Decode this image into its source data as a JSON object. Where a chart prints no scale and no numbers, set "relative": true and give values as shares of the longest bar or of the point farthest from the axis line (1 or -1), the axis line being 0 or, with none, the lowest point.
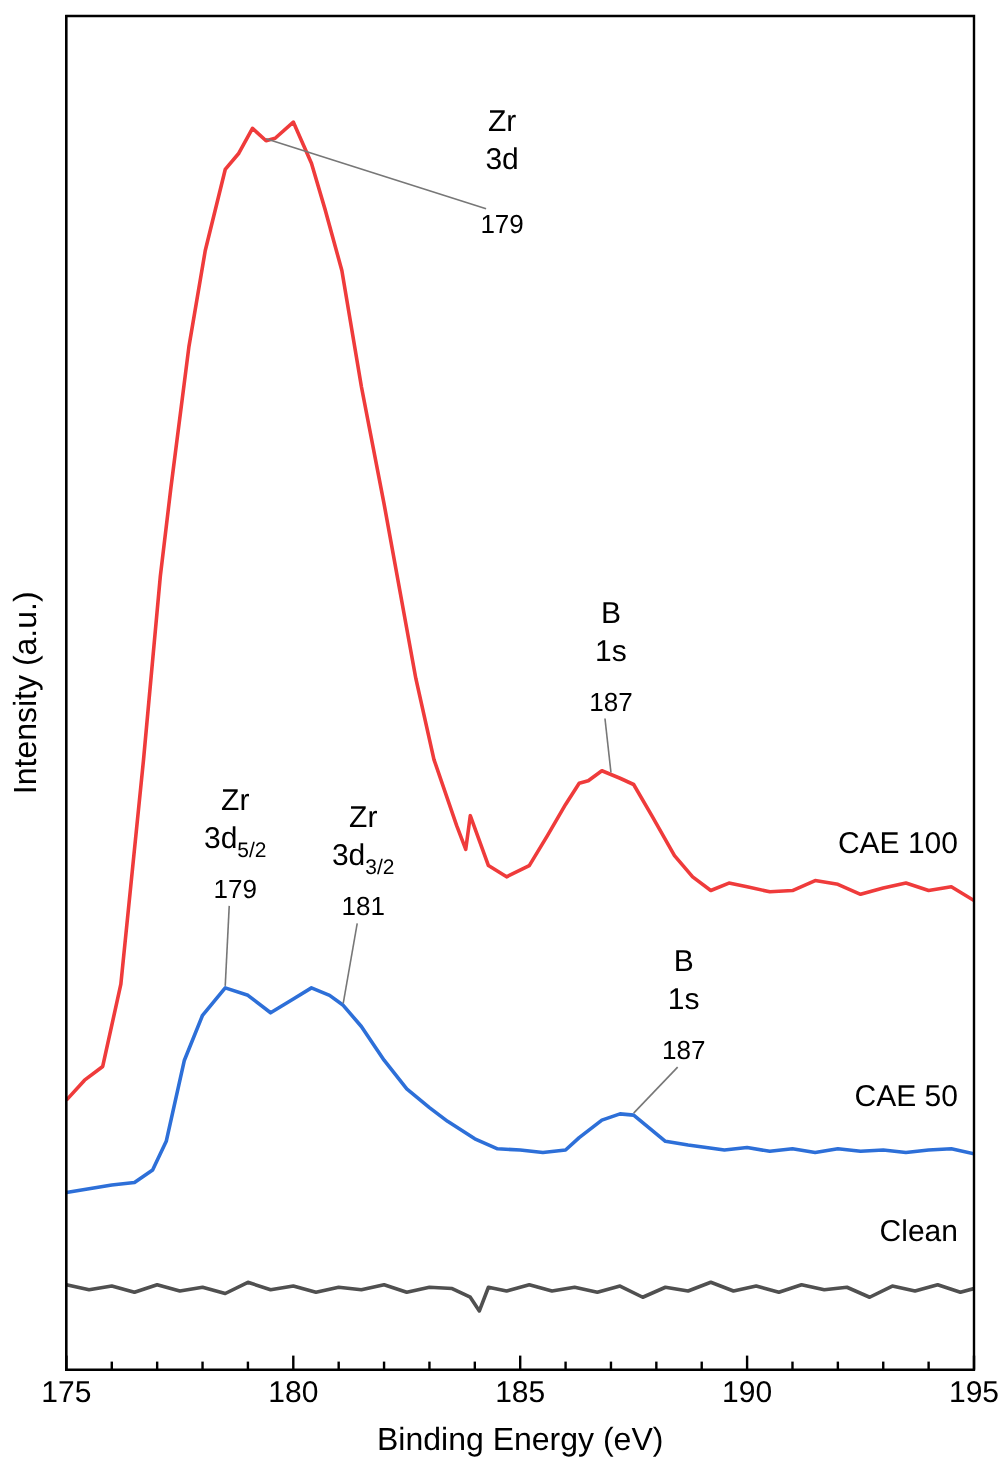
{
  "chart_data": {
    "type": "line",
    "relative": true,
    "xlabel": "Binding Energy (eV)",
    "ylabel": "Intensity (a.u.)",
    "xlim": [
      175,
      195
    ],
    "xticks": [
      175,
      {
        "value": 176,
        "label": null
      },
      {
        "value": 177,
        "label": null
      },
      {
        "value": 178,
        "label": null
      },
      {
        "value": 179,
        "label": null
      },
      180,
      {
        "value": 181,
        "label": null
      },
      {
        "value": 182,
        "label": null
      },
      {
        "value": 183,
        "label": null
      },
      {
        "value": 184,
        "label": null
      },
      185,
      {
        "value": 186,
        "label": null
      },
      {
        "value": 187,
        "label": null
      },
      {
        "value": 188,
        "label": null
      },
      {
        "value": 189,
        "label": null
      },
      190,
      {
        "value": 191,
        "label": null
      },
      {
        "value": 192,
        "label": null
      },
      {
        "value": 193,
        "label": null
      },
      {
        "value": 194,
        "label": null
      },
      195
    ],
    "grid": false,
    "legend": false,
    "marker": "none",
    "line_style": "solid",
    "series": [
      {
        "name": "CAE 100",
        "color": "#ef3b3b",
        "x": [
          175,
          175.4,
          175.8,
          176.2,
          176.7,
          177.07,
          177.3,
          177.7,
          178.06,
          178.5,
          178.8,
          179.1,
          179.4,
          179.6,
          180,
          180.4,
          180.7,
          181.07,
          181.5,
          182,
          182.7,
          183.1,
          183.6,
          183.8,
          183.9,
          184.3,
          184.7,
          185.2,
          185.6,
          186,
          186.3,
          186.5,
          186.8,
          187,
          187.2,
          187.5,
          187.9,
          188.4,
          188.8,
          189.2,
          189.6,
          190,
          190.5,
          191,
          191.5,
          192,
          192.5,
          193,
          193.5,
          194,
          194.5,
          195
        ],
        "values": [
          0.216,
          0.232,
          0.243,
          0.309,
          0.489,
          0.636,
          0.706,
          0.82,
          0.897,
          0.962,
          0.975,
          0.995,
          0.985,
          0.987,
          1,
          0.967,
          0.93,
          0.881,
          0.788,
          0.694,
          0.554,
          0.489,
          0.436,
          0.417,
          0.444,
          0.404,
          0.395,
          0.404,
          0.428,
          0.453,
          0.47,
          0.472,
          0.48,
          0.477,
          0.474,
          0.469,
          0.444,
          0.412,
          0.395,
          0.384,
          0.39,
          0.387,
          0.383,
          0.384,
          0.392,
          0.389,
          0.381,
          0.386,
          0.39,
          0.384,
          0.387,
          0.376
        ]
      },
      {
        "name": "CAE 50",
        "color": "#2d6fd8",
        "x": [
          175,
          175.5,
          176,
          176.5,
          176.9,
          177.2,
          177.6,
          178,
          178.5,
          179,
          179.5,
          180,
          180.4,
          180.8,
          181.1,
          181.5,
          182,
          182.5,
          183,
          183.4,
          184,
          184.5,
          185,
          185.5,
          186,
          186.3,
          186.8,
          187.2,
          187.5,
          187.8,
          188.2,
          188.7,
          189.5,
          190,
          190.5,
          191,
          191.5,
          192,
          192.5,
          193,
          193.5,
          194,
          194.5,
          195
        ],
        "values": [
          0.142,
          0.145,
          0.148,
          0.15,
          0.16,
          0.183,
          0.248,
          0.284,
          0.306,
          0.3,
          0.286,
          0.297,
          0.306,
          0.3,
          0.292,
          0.275,
          0.248,
          0.225,
          0.21,
          0.199,
          0.185,
          0.177,
          0.176,
          0.174,
          0.176,
          0.186,
          0.2,
          0.205,
          0.204,
          0.195,
          0.183,
          0.18,
          0.176,
          0.178,
          0.175,
          0.177,
          0.174,
          0.177,
          0.175,
          0.176,
          0.174,
          0.176,
          0.177,
          0.173
        ]
      },
      {
        "name": "Clean",
        "color": "#505050",
        "x": [
          175,
          175.5,
          176,
          176.5,
          177,
          177.5,
          178,
          178.5,
          179,
          179.5,
          180,
          180.5,
          181,
          181.5,
          182,
          182.5,
          183,
          183.5,
          183.9,
          184.1,
          184.3,
          184.7,
          185.2,
          185.7,
          186.2,
          186.7,
          187.2,
          187.7,
          188.2,
          188.7,
          189.2,
          189.7,
          190.2,
          190.7,
          191.2,
          191.7,
          192.2,
          192.7,
          193.2,
          193.7,
          194.2,
          194.7,
          195
        ],
        "values": [
          0.068,
          0.064,
          0.067,
          0.062,
          0.068,
          0.063,
          0.066,
          0.061,
          0.07,
          0.064,
          0.067,
          0.062,
          0.066,
          0.064,
          0.068,
          0.062,
          0.066,
          0.065,
          0.058,
          0.047,
          0.066,
          0.063,
          0.068,
          0.063,
          0.066,
          0.062,
          0.067,
          0.058,
          0.066,
          0.063,
          0.07,
          0.063,
          0.067,
          0.062,
          0.068,
          0.064,
          0.066,
          0.058,
          0.067,
          0.063,
          0.068,
          0.062,
          0.065
        ]
      }
    ],
    "annotations": [
      {
        "text": "Zr\n3d\n179",
        "x": 179.4,
        "y": 0.985
      },
      {
        "text": "B\n1s\n187",
        "x": 187,
        "y": 0.477
      },
      {
        "text": "Zr\n3d$_{5/2}$\n179",
        "x": 178.5,
        "y": 0.306
      },
      {
        "text": "Zr\n3d$_{3/2}$\n181",
        "x": 181.1,
        "y": 0.292
      },
      {
        "text": "B\n1s\n187",
        "x": 187.5,
        "y": 0.204
      }
    ]
  }
}
